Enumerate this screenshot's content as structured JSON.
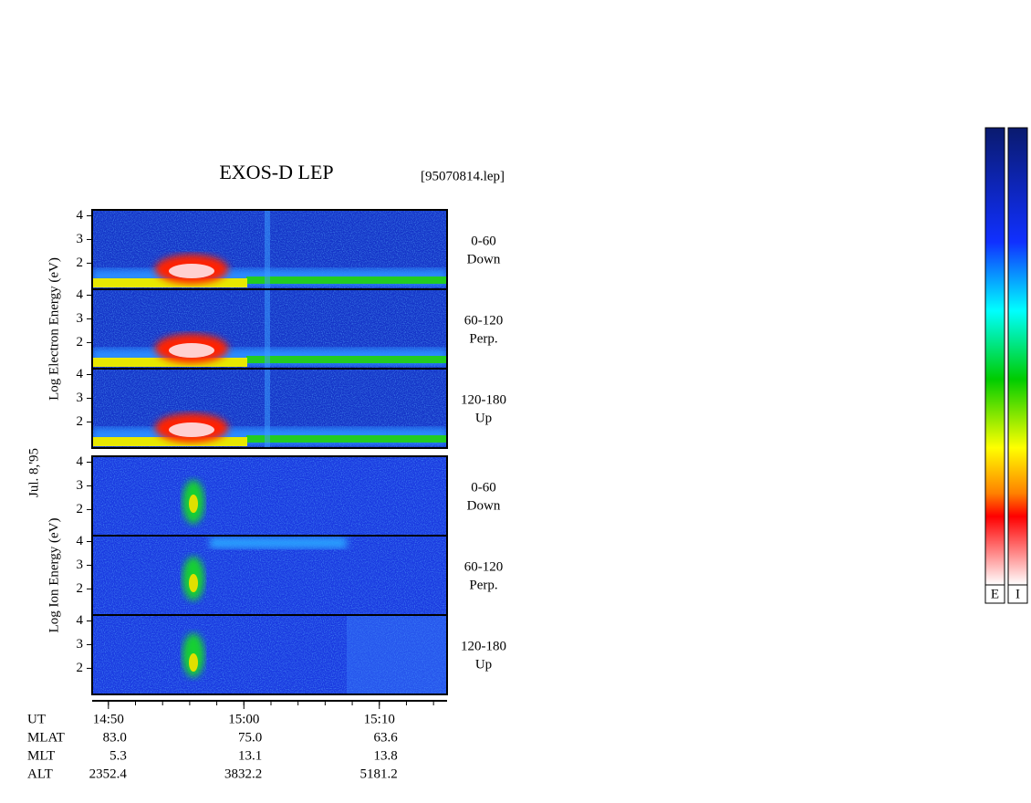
{
  "title": "EXOS-D LEP",
  "file": "[95070814.lep]",
  "date": "Jul. 8,'95",
  "chart_data": {
    "type": "spectrogram",
    "xlim": [
      888.8,
      915
    ],
    "xticks": [
      {
        "value": 890,
        "label": "14:50"
      },
      {
        "value": 900,
        "label": "15:00"
      },
      {
        "value": 910,
        "label": "15:10"
      }
    ],
    "xminorticks": [
      890,
      892,
      894,
      896,
      898,
      900,
      902,
      904,
      906,
      908,
      910,
      912,
      914
    ],
    "ylim": [
      0.9,
      4.25
    ],
    "yticks": [
      2,
      3,
      4
    ],
    "groups": [
      {
        "axis_label": "Log Electron Energy (eV)",
        "species": "electron",
        "panels": [
          {
            "label": "0-60",
            "sublabel": "Down"
          },
          {
            "label": "60-120",
            "sublabel": "Perp."
          },
          {
            "label": "120-180",
            "sublabel": "Up"
          }
        ]
      },
      {
        "axis_label": "Log Ion Energy (eV)",
        "species": "ion",
        "panels": [
          {
            "label": "0-60",
            "sublabel": "Down"
          },
          {
            "label": "60-120",
            "sublabel": "Perp."
          },
          {
            "label": "120-180",
            "sublabel": "Up"
          }
        ]
      }
    ],
    "x_label": "UT",
    "ephemeris": [
      {
        "label": "MLAT",
        "values": [
          "83.0",
          "75.0",
          "63.6"
        ]
      },
      {
        "label": "MLT",
        "values": [
          "5.3",
          "13.1",
          "13.8"
        ]
      },
      {
        "label": "ALT",
        "values": [
          "2352.4",
          "3832.2",
          "5181.2"
        ]
      }
    ],
    "colorbar_labels": [
      "E",
      "I"
    ]
  }
}
